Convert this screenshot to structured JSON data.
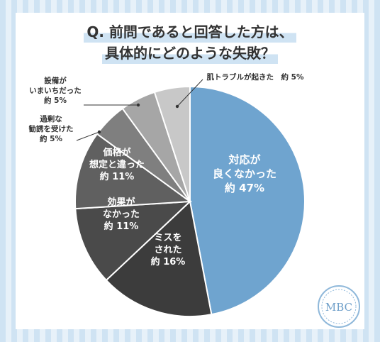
{
  "title_line1": "Q. 前問であると回答した方は、",
  "title_line2": "具体的にどのような失敗？",
  "logo_text": "MBC",
  "colors": {
    "bg": "#cfe3f3",
    "accent": "#6fa4cf",
    "dark": "#3c3c3c"
  },
  "chart_data": {
    "type": "pie",
    "start": "12 o'clock, clockwise",
    "slices": [
      {
        "lines": [
          "対応が",
          "良くなかった",
          "約 47%"
        ],
        "value": 47,
        "color": "#6fa4cf",
        "label_pos": "inside"
      },
      {
        "lines": [
          "ミスを",
          "された",
          "約 16%"
        ],
        "value": 16,
        "color": "#3c3c3c",
        "label_pos": "inside"
      },
      {
        "lines": [
          "効果が",
          "なかった",
          "約 11%"
        ],
        "value": 11,
        "color": "#4a4a4a",
        "label_pos": "inside"
      },
      {
        "lines": [
          "価格が",
          "想定と違った",
          "約 11%"
        ],
        "value": 11,
        "color": "#606060",
        "label_pos": "inside"
      },
      {
        "lines": [
          "過剰な",
          "勧誘を受けた",
          "約 5%"
        ],
        "value": 5,
        "color": "#7f7f7f",
        "label_pos": "outside"
      },
      {
        "lines": [
          "設備が",
          "いまいちだった",
          "約 5%"
        ],
        "value": 5,
        "color": "#a6a6a6",
        "label_pos": "outside"
      },
      {
        "lines": [
          "肌トラブルが起きた　約 5%"
        ],
        "value": 5,
        "color": "#c8c8c8",
        "label_pos": "outside"
      }
    ]
  }
}
